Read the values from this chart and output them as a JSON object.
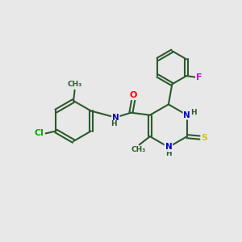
{
  "background_color": "#e8e8e8",
  "bond_color": "#2d5a2d",
  "atom_colors": {
    "N": "#0000cc",
    "O": "#ff0000",
    "S": "#cccc00",
    "Cl": "#00aa00",
    "F": "#cc00cc",
    "C": "#2d5a2d",
    "H": "#2d5a2d"
  }
}
